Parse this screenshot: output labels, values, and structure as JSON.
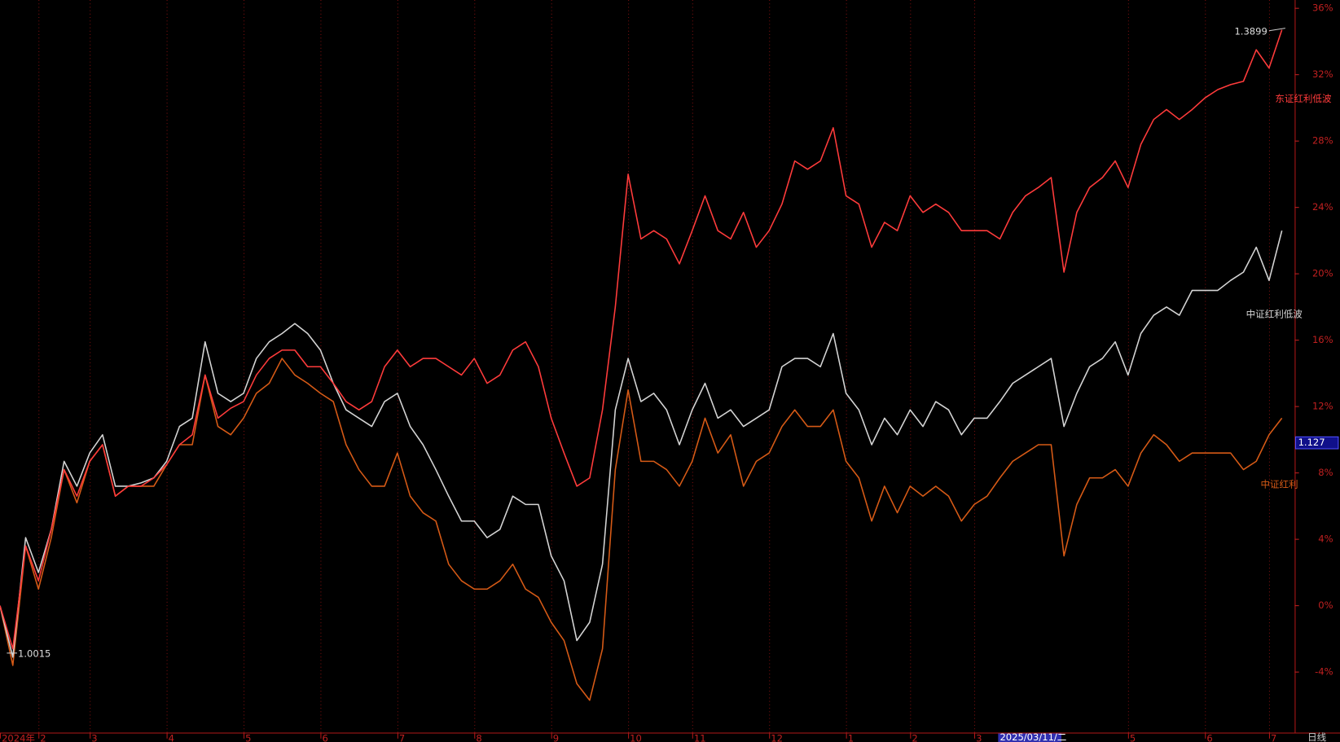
{
  "chart_data": {
    "type": "line",
    "categories": [
      "2024年",
      null,
      null,
      "2",
      null,
      null,
      null,
      "3",
      null,
      null,
      null,
      null,
      null,
      "4",
      null,
      null,
      null,
      null,
      null,
      "5",
      null,
      null,
      null,
      null,
      null,
      "6",
      null,
      null,
      null,
      null,
      null,
      "7",
      null,
      null,
      null,
      null,
      null,
      "8",
      null,
      null,
      null,
      null,
      null,
      "9",
      null,
      null,
      null,
      null,
      null,
      "10",
      null,
      null,
      null,
      null,
      "11",
      null,
      null,
      null,
      null,
      null,
      "12",
      null,
      null,
      null,
      null,
      null,
      "1",
      null,
      null,
      null,
      null,
      "2",
      null,
      null,
      null,
      null,
      "3",
      null,
      null,
      null,
      null,
      null,
      null,
      null,
      null,
      null,
      null,
      null,
      "5",
      null,
      null,
      null,
      null,
      null,
      "6",
      null,
      null,
      null,
      null,
      "7",
      null
    ],
    "series": [
      {
        "name": "东证红利低波",
        "color": "#ff3b3b",
        "values": [
          0,
          -2.6,
          3.6,
          1.5,
          4.6,
          8.2,
          6.6,
          8.7,
          9.7,
          6.6,
          7.2,
          7.2,
          7.7,
          8.5,
          9.7,
          10.3,
          13.9,
          11.3,
          11.9,
          12.3,
          13.9,
          14.9,
          15.4,
          15.4,
          14.4,
          14.4,
          13.4,
          12.3,
          11.8,
          12.3,
          14.4,
          15.4,
          14.4,
          14.9,
          14.9,
          14.4,
          13.9,
          14.9,
          13.4,
          13.9,
          15.4,
          15.9,
          14.4,
          11.3,
          9.2,
          7.2,
          7.7,
          11.8,
          18,
          26,
          22.1,
          22.6,
          22.1,
          20.6,
          22.6,
          24.7,
          22.6,
          22.1,
          23.7,
          21.6,
          22.6,
          24.2,
          26.8,
          26.3,
          26.8,
          28.8,
          24.7,
          24.2,
          21.6,
          23.1,
          22.6,
          24.7,
          23.7,
          24.2,
          23.7,
          22.6,
          22.6,
          22.6,
          22.1,
          23.7,
          24.7,
          25.2,
          25.8,
          20.1,
          23.7,
          25.2,
          25.8,
          26.8,
          25.2,
          27.8,
          29.3,
          29.9,
          29.3,
          29.9,
          30.6,
          31.1,
          31.4,
          31.6,
          33.5,
          32.4,
          34.7
        ]
      },
      {
        "name": "中证红利低波",
        "color": "#d4d4d4",
        "values": [
          0,
          -3.1,
          4.1,
          2.0,
          4.6,
          8.7,
          7.2,
          9.2,
          10.3,
          7.2,
          7.2,
          7.4,
          7.7,
          8.7,
          10.8,
          11.3,
          15.9,
          12.8,
          12.3,
          12.8,
          14.9,
          15.9,
          16.4,
          17.0,
          16.4,
          15.4,
          13.4,
          11.8,
          11.3,
          10.8,
          12.3,
          12.8,
          10.8,
          9.7,
          8.2,
          6.6,
          5.1,
          5.1,
          4.1,
          4.6,
          6.6,
          6.1,
          6.1,
          3.0,
          1.5,
          -2.1,
          -1.0,
          2.5,
          11.8,
          14.9,
          12.3,
          12.8,
          11.8,
          9.7,
          11.8,
          13.4,
          11.3,
          11.8,
          10.8,
          11.3,
          11.8,
          14.4,
          14.9,
          14.9,
          14.4,
          16.4,
          12.8,
          11.8,
          9.7,
          11.3,
          10.3,
          11.8,
          10.8,
          12.3,
          11.8,
          10.3,
          11.3,
          11.3,
          12.3,
          13.4,
          13.9,
          14.4,
          14.9,
          10.8,
          12.8,
          14.4,
          14.9,
          15.9,
          13.9,
          16.4,
          17.5,
          18.0,
          17.5,
          19.0,
          19.0,
          19.0,
          19.6,
          20.1,
          21.6,
          19.6,
          22.6
        ]
      },
      {
        "name": "中证红利",
        "color": "#d65a16",
        "values": [
          0,
          -3.6,
          3.6,
          1.0,
          4.1,
          8.2,
          6.2,
          8.7,
          9.7,
          6.6,
          7.2,
          7.2,
          7.2,
          8.5,
          9.7,
          9.7,
          13.9,
          10.8,
          10.3,
          11.3,
          12.8,
          13.4,
          14.9,
          13.9,
          13.4,
          12.8,
          12.3,
          9.7,
          8.2,
          7.2,
          7.2,
          9.2,
          6.6,
          5.6,
          5.1,
          2.5,
          1.5,
          1.0,
          1.0,
          1.5,
          2.5,
          1.0,
          0.5,
          -1.0,
          -2.1,
          -4.7,
          -5.7,
          -2.6,
          8.2,
          13,
          8.7,
          8.7,
          8.2,
          7.2,
          8.7,
          11.3,
          9.2,
          10.3,
          7.2,
          8.7,
          9.2,
          10.8,
          11.8,
          10.8,
          10.8,
          11.8,
          8.7,
          7.7,
          5.1,
          7.2,
          5.6,
          7.2,
          6.6,
          7.2,
          6.6,
          5.1,
          6.1,
          6.6,
          7.7,
          8.7,
          9.2,
          9.7,
          9.7,
          3.0,
          6.1,
          7.7,
          7.7,
          8.2,
          7.2,
          9.2,
          10.3,
          9.7,
          8.7,
          9.2,
          9.2,
          9.2,
          9.2,
          8.2,
          8.7,
          10.3,
          11.3
        ]
      }
    ],
    "ylim": [
      -7.7,
      36.5
    ],
    "yticks": [
      {
        "value": 36,
        "label": "36%"
      },
      {
        "value": 32,
        "label": "32%"
      },
      {
        "value": 28,
        "label": "28%"
      },
      {
        "value": 24,
        "label": "24%"
      },
      {
        "value": 20,
        "label": "20%"
      },
      {
        "value": 16,
        "label": "16%"
      },
      {
        "value": 12,
        "label": "12%"
      },
      {
        "value": 8,
        "label": "8%"
      },
      {
        "value": 4,
        "label": "4%"
      },
      {
        "value": 0,
        "label": "0%"
      },
      {
        "value": -4,
        "label": "-4%"
      }
    ],
    "grid": true,
    "annotations": {
      "max_label": "1.3899",
      "min_label": "1.0015",
      "cursor_value": "1.127",
      "cursor_date": "2025/03/11/二",
      "period": "日线"
    }
  }
}
